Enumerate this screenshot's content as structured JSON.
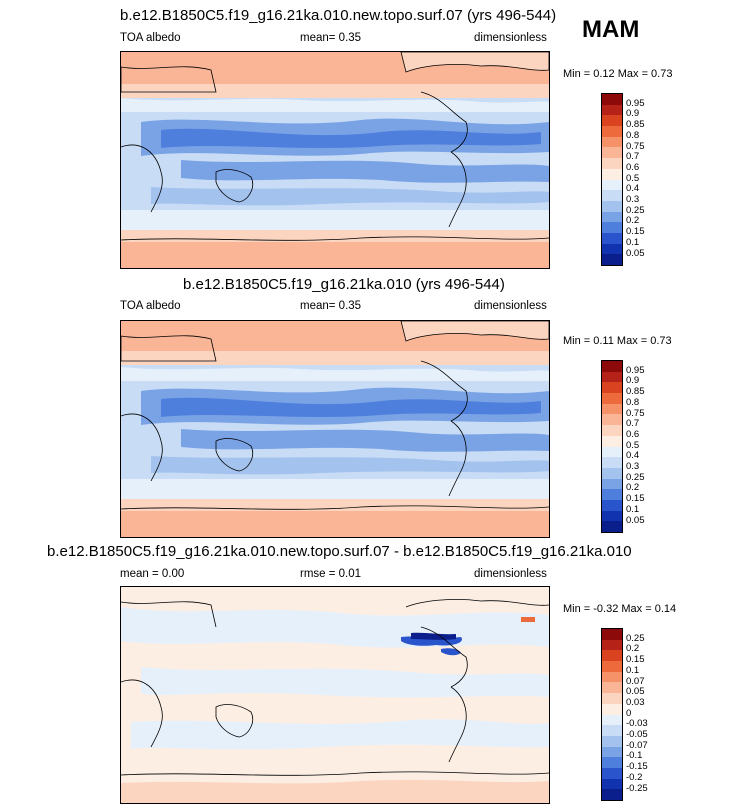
{
  "season": "MAM",
  "panels": [
    {
      "title": "b.e12.B1850C5.f19_g16.21ka.010.new.topo.surf.07 (yrs 496-544)",
      "left": "TOA albedo",
      "mid": "mean=   0.35",
      "right": "dimensionless",
      "minmax": "Min =   0.12 Max =   0.73",
      "levels": [
        "0.95",
        "0.9",
        "0.85",
        "0.8",
        "0.75",
        "0.7",
        "0.6",
        "0.5",
        "0.4",
        "0.3",
        "0.25",
        "0.2",
        "0.15",
        "0.1",
        "0.05"
      ],
      "colors": [
        "#8c0a0a",
        "#b52218",
        "#d9431f",
        "#ed6a3d",
        "#f5926a",
        "#f9b596",
        "#fbd5c0",
        "#fdeee4",
        "#e6f0fb",
        "#c8dcf5",
        "#a3c2ee",
        "#7aa3e6",
        "#4f7fdc",
        "#2954cc",
        "#1233b0",
        "#0a1f8c"
      ]
    },
    {
      "title": "b.e12.B1850C5.f19_g16.21ka.010 (yrs 496-544)",
      "left": "TOA albedo",
      "mid": "mean=   0.35",
      "right": "dimensionless",
      "minmax": "Min =   0.11 Max =   0.73",
      "levels": [
        "0.95",
        "0.9",
        "0.85",
        "0.8",
        "0.75",
        "0.7",
        "0.6",
        "0.5",
        "0.4",
        "0.3",
        "0.25",
        "0.2",
        "0.15",
        "0.1",
        "0.05"
      ],
      "colors": [
        "#8c0a0a",
        "#b52218",
        "#d9431f",
        "#ed6a3d",
        "#f5926a",
        "#f9b596",
        "#fbd5c0",
        "#fdeee4",
        "#e6f0fb",
        "#c8dcf5",
        "#a3c2ee",
        "#7aa3e6",
        "#4f7fdc",
        "#2954cc",
        "#1233b0",
        "#0a1f8c"
      ]
    },
    {
      "title": "b.e12.B1850C5.f19_g16.21ka.010.new.topo.surf.07 - b.e12.B1850C5.f19_g16.21ka.010",
      "left": "mean =   0.00",
      "mid": "rmse =   0.01",
      "right": "dimensionless",
      "minmax": "Min =  -0.32 Max =   0.14",
      "levels": [
        "0.25",
        "0.2",
        "0.15",
        "0.1",
        "0.07",
        "0.05",
        "0.03",
        "0",
        "-0.03",
        "-0.05",
        "-0.07",
        "-0.1",
        "-0.15",
        "-0.2",
        "-0.25"
      ],
      "colors": [
        "#8c0a0a",
        "#b52218",
        "#d9431f",
        "#ed6a3d",
        "#f5926a",
        "#f9b596",
        "#fbd5c0",
        "#fdeee4",
        "#e6f0fb",
        "#c8dcf5",
        "#a3c2ee",
        "#7aa3e6",
        "#4f7fdc",
        "#2954cc",
        "#1233b0",
        "#0a1f8c"
      ]
    }
  ],
  "chart_data": [
    {
      "type": "heatmap",
      "title": "b.e12.B1850C5.f19_g16.21ka.010.new.topo.surf.07 (yrs 496-544)",
      "variable": "TOA albedo",
      "units": "dimensionless",
      "mean": 0.35,
      "min": 0.12,
      "max": 0.73,
      "contour_levels": [
        0.05,
        0.1,
        0.15,
        0.2,
        0.25,
        0.3,
        0.4,
        0.5,
        0.6,
        0.7,
        0.75,
        0.8,
        0.85,
        0.9,
        0.95
      ]
    },
    {
      "type": "heatmap",
      "title": "b.e12.B1850C5.f19_g16.21ka.010 (yrs 496-544)",
      "variable": "TOA albedo",
      "units": "dimensionless",
      "mean": 0.35,
      "min": 0.11,
      "max": 0.73,
      "contour_levels": [
        0.05,
        0.1,
        0.15,
        0.2,
        0.25,
        0.3,
        0.4,
        0.5,
        0.6,
        0.7,
        0.75,
        0.8,
        0.85,
        0.9,
        0.95
      ]
    },
    {
      "type": "heatmap",
      "title": "b.e12.B1850C5.f19_g16.21ka.010.new.topo.surf.07 - b.e12.B1850C5.f19_g16.21ka.010",
      "units": "dimensionless",
      "mean": 0.0,
      "rmse": 0.01,
      "min": -0.32,
      "max": 0.14,
      "contour_levels": [
        -0.25,
        -0.2,
        -0.15,
        -0.1,
        -0.07,
        -0.05,
        -0.03,
        0,
        0.03,
        0.05,
        0.07,
        0.1,
        0.15,
        0.2,
        0.25
      ]
    }
  ]
}
